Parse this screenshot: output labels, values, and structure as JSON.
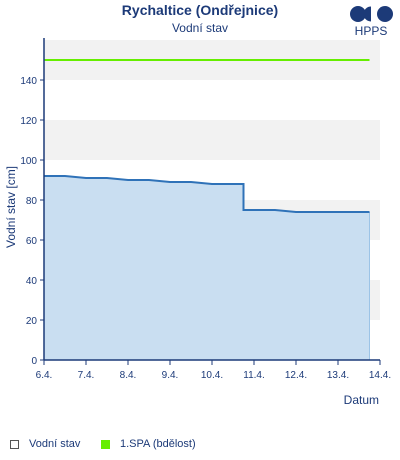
{
  "header": {
    "station": "Rychaltice (Ondřejnice)",
    "subtitle": "Vodní stav",
    "logo_text": "HPPS"
  },
  "colors": {
    "series": "#2f72b8",
    "fill": "#c6dcf0",
    "threshold": "#66ee00",
    "text": "#1c3a78",
    "band": "#f2f2f2"
  },
  "chart_data": {
    "type": "area",
    "title": "Rychaltice (Ondřejnice)",
    "subtitle": "Vodní stav",
    "xlabel": "Datum",
    "ylabel": "Vodní stav [cm]",
    "ylim": [
      0,
      160
    ],
    "yticks": [
      0,
      20,
      40,
      60,
      80,
      100,
      120,
      140
    ],
    "xlim": [
      "6.4.",
      "14.4."
    ],
    "xticks": [
      "6.4.",
      "7.4.",
      "8.4.",
      "9.4.",
      "10.4.",
      "11.4.",
      "12.4.",
      "13.4.",
      "14.4."
    ],
    "grid": "alternating horizontal bands",
    "legend": "bottom",
    "series": [
      {
        "name": "Vodní stav",
        "points": [
          [
            "6.4. 00:00",
            92
          ],
          [
            "6.4. 12:00",
            92
          ],
          [
            "7.4. 00:00",
            91
          ],
          [
            "7.4. 12:00",
            91
          ],
          [
            "8.4. 00:00",
            90
          ],
          [
            "8.4. 12:00",
            90
          ],
          [
            "9.4. 00:00",
            89
          ],
          [
            "9.4. 12:00",
            89
          ],
          [
            "10.4. 00:00",
            88
          ],
          [
            "10.4. 12:00",
            88
          ],
          [
            "10.4. 18:00",
            88
          ],
          [
            "10.4. 18:00",
            75
          ],
          [
            "11.4. 00:00",
            75
          ],
          [
            "11.4. 12:00",
            75
          ],
          [
            "12.4. 00:00",
            74
          ],
          [
            "12.4. 12:00",
            74
          ],
          [
            "13.4. 00:00",
            74
          ],
          [
            "13.4. 12:00",
            74
          ],
          [
            "13.4. 18:00",
            74
          ]
        ]
      },
      {
        "name": "1.SPA (bdělost)",
        "points": [
          [
            "6.4. 00:00",
            150
          ],
          [
            "13.4. 18:00",
            150
          ]
        ]
      }
    ]
  },
  "legend": [
    {
      "label": "Vodní stav"
    },
    {
      "label": "1.SPA (bdělost)"
    }
  ]
}
